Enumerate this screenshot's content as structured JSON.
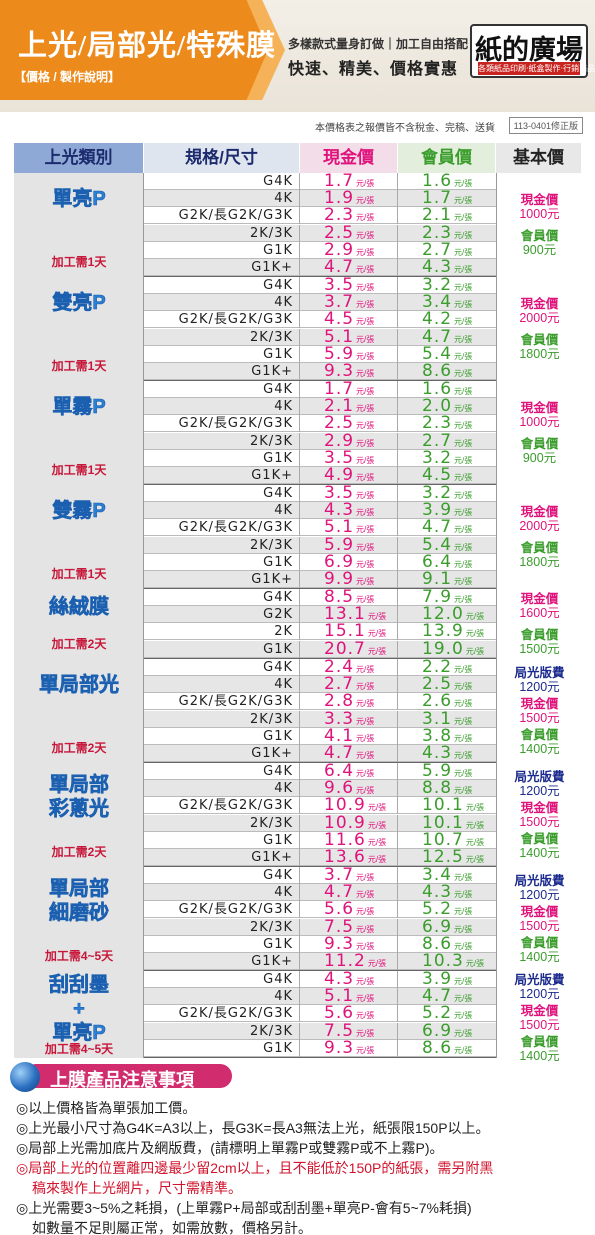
{
  "header": {
    "title": "上光/局部光/特殊膜",
    "subtitle": "【價格 / 製作說明】",
    "line1": "多樣款式量身訂做｜加工自由搭配",
    "line2": "快速、精美、價格實惠",
    "brand_name": "紙的廣場",
    "brand_tagline": "各類紙品印刷‧紙盒製作‧行銷商品",
    "colors": {
      "accent": "#ed8a1c",
      "brand_red": "#c8231f"
    }
  },
  "notice": {
    "text": "本價格表之報價皆不含稅金、完稿、送貨",
    "version": "113-0401修正版"
  },
  "table": {
    "headers": {
      "type": "上光類別",
      "spec": "規格/尺寸",
      "cash": "現金價",
      "member": "會員價",
      "base": "基本價"
    },
    "unit": "元/張",
    "groups": [
      {
        "name": "單亮P",
        "process": "加工需1天",
        "base": {
          "cash_label": "現金價",
          "cash_value": "1000元",
          "member_label": "會員價",
          "member_value": "900元"
        },
        "rows": [
          {
            "spec": "G4K",
            "cash": "1.7",
            "member": "1.6"
          },
          {
            "spec": "4K",
            "cash": "1.9",
            "member": "1.7"
          },
          {
            "spec": "G2K/長G2K/G3K",
            "cash": "2.3",
            "member": "2.1"
          },
          {
            "spec": "2K/3K",
            "cash": "2.5",
            "member": "2.3"
          },
          {
            "spec": "G1K",
            "cash": "2.9",
            "member": "2.7"
          },
          {
            "spec": "G1K+",
            "cash": "4.7",
            "member": "4.3"
          }
        ]
      },
      {
        "name": "雙亮P",
        "process": "加工需1天",
        "base": {
          "cash_label": "現金價",
          "cash_value": "2000元",
          "member_label": "會員價",
          "member_value": "1800元"
        },
        "rows": [
          {
            "spec": "G4K",
            "cash": "3.5",
            "member": "3.2"
          },
          {
            "spec": "4K",
            "cash": "3.7",
            "member": "3.4"
          },
          {
            "spec": "G2K/長G2K/G3K",
            "cash": "4.5",
            "member": "4.2"
          },
          {
            "spec": "2K/3K",
            "cash": "5.1",
            "member": "4.7"
          },
          {
            "spec": "G1K",
            "cash": "5.9",
            "member": "5.4"
          },
          {
            "spec": "G1K+",
            "cash": "9.3",
            "member": "8.6"
          }
        ]
      },
      {
        "name": "單霧P",
        "process": "加工需1天",
        "base": {
          "cash_label": "現金價",
          "cash_value": "1000元",
          "member_label": "會員價",
          "member_value": "900元"
        },
        "rows": [
          {
            "spec": "G4K",
            "cash": "1.7",
            "member": "1.6"
          },
          {
            "spec": "4K",
            "cash": "2.1",
            "member": "2.0"
          },
          {
            "spec": "G2K/長G2K/G3K",
            "cash": "2.5",
            "member": "2.3"
          },
          {
            "spec": "2K/3K",
            "cash": "2.9",
            "member": "2.7"
          },
          {
            "spec": "G1K",
            "cash": "3.5",
            "member": "3.2"
          },
          {
            "spec": "G1K+",
            "cash": "4.9",
            "member": "4.5"
          }
        ]
      },
      {
        "name": "雙霧P",
        "process": "加工需1天",
        "base": {
          "cash_label": "現金價",
          "cash_value": "2000元",
          "member_label": "會員價",
          "member_value": "1800元"
        },
        "rows": [
          {
            "spec": "G4K",
            "cash": "3.5",
            "member": "3.2"
          },
          {
            "spec": "4K",
            "cash": "4.3",
            "member": "3.9"
          },
          {
            "spec": "G2K/長G2K/G3K",
            "cash": "5.1",
            "member": "4.7"
          },
          {
            "spec": "2K/3K",
            "cash": "5.9",
            "member": "5.4"
          },
          {
            "spec": "G1K",
            "cash": "6.9",
            "member": "6.4"
          },
          {
            "spec": "G1K+",
            "cash": "9.9",
            "member": "9.1"
          }
        ]
      },
      {
        "name": "絲絨膜",
        "process": "加工需2天",
        "base": {
          "cash_label": "現金價",
          "cash_value": "1600元",
          "member_label": "會員價",
          "member_value": "1500元"
        },
        "rows": [
          {
            "spec": "G4K",
            "cash": "8.5",
            "member": "7.9"
          },
          {
            "spec": "G2K",
            "cash": "13.1",
            "member": "12.0"
          },
          {
            "spec": "2K",
            "cash": "15.1",
            "member": "13.9"
          },
          {
            "spec": "G1K",
            "cash": "20.7",
            "member": "19.0"
          }
        ]
      },
      {
        "name": "單局部光",
        "process": "加工需2天",
        "base": {
          "plate_label": "局光版費",
          "plate_value": "1200元",
          "cash_label": "現金價",
          "cash_value": "1500元",
          "member_label": "會員價",
          "member_value": "1400元"
        },
        "rows": [
          {
            "spec": "G4K",
            "cash": "2.4",
            "member": "2.2"
          },
          {
            "spec": "4K",
            "cash": "2.7",
            "member": "2.5"
          },
          {
            "spec": "G2K/長G2K/G3K",
            "cash": "2.8",
            "member": "2.6"
          },
          {
            "spec": "2K/3K",
            "cash": "3.3",
            "member": "3.1"
          },
          {
            "spec": "G1K",
            "cash": "4.1",
            "member": "3.8"
          },
          {
            "spec": "G1K+",
            "cash": "4.7",
            "member": "4.3"
          }
        ]
      },
      {
        "name": "單局部彩蔥光",
        "process": "加工需2天",
        "base": {
          "plate_label": "局光版費",
          "plate_value": "1200元",
          "cash_label": "現金價",
          "cash_value": "1500元",
          "member_label": "會員價",
          "member_value": "1400元"
        },
        "rows": [
          {
            "spec": "G4K",
            "cash": "6.4",
            "member": "5.9"
          },
          {
            "spec": "4K",
            "cash": "9.6",
            "member": "8.8"
          },
          {
            "spec": "G2K/長G2K/G3K",
            "cash": "10.9",
            "member": "10.1"
          },
          {
            "spec": "2K/3K",
            "cash": "10.9",
            "member": "10.1"
          },
          {
            "spec": "G1K",
            "cash": "11.6",
            "member": "10.7"
          },
          {
            "spec": "G1K+",
            "cash": "13.6",
            "member": "12.5"
          }
        ]
      },
      {
        "name": "單局部細磨砂",
        "process": "加工需4~5天",
        "base": {
          "plate_label": "局光版費",
          "plate_value": "1200元",
          "cash_label": "現金價",
          "cash_value": "1500元",
          "member_label": "會員價",
          "member_value": "1400元"
        },
        "rows": [
          {
            "spec": "G4K",
            "cash": "3.7",
            "member": "3.4"
          },
          {
            "spec": "4K",
            "cash": "4.7",
            "member": "4.3"
          },
          {
            "spec": "G2K/長G2K/G3K",
            "cash": "5.6",
            "member": "5.2"
          },
          {
            "spec": "2K/3K",
            "cash": "7.5",
            "member": "6.9"
          },
          {
            "spec": "G1K",
            "cash": "9.3",
            "member": "8.6"
          },
          {
            "spec": "G1K+",
            "cash": "11.2",
            "member": "10.3"
          }
        ]
      },
      {
        "name": "刮刮墨+單亮P",
        "process": "加工需4~5天",
        "base": {
          "plate_label": "局光版費",
          "plate_value": "1200元",
          "cash_label": "現金價",
          "cash_value": "1500元",
          "member_label": "會員價",
          "member_value": "1400元"
        },
        "rows": [
          {
            "spec": "G4K",
            "cash": "4.3",
            "member": "3.9"
          },
          {
            "spec": "4K",
            "cash": "5.1",
            "member": "4.7"
          },
          {
            "spec": "G2K/長G2K/G3K",
            "cash": "5.6",
            "member": "5.2"
          },
          {
            "spec": "2K/3K",
            "cash": "7.5",
            "member": "6.9"
          },
          {
            "spec": "G1K",
            "cash": "9.3",
            "member": "8.6"
          }
        ]
      }
    ]
  },
  "notes": {
    "title": "上膜產品注意事項",
    "items": [
      "◎以上價格皆為單張加工價。",
      "◎上光最小尺寸為G4K=A3以上，長G3K=長A3無法上光，紙張限150P以上。",
      "◎局部上光需加底片及網版費，(請標明上單霧P或雙霧P或不上霧P)。",
      "◎局部上光的位置離四邊最少留2cm以上，且不能低於150P的紙張，需另附黑",
      "稿來製作上光網片，尺寸需精準。",
      "◎上光需要3~5%之耗損，(上單霧P+局部或刮刮墨+單亮P-會有5~7%耗損)",
      "如數量不足則屬正常，如需放數，價格另計。"
    ]
  }
}
